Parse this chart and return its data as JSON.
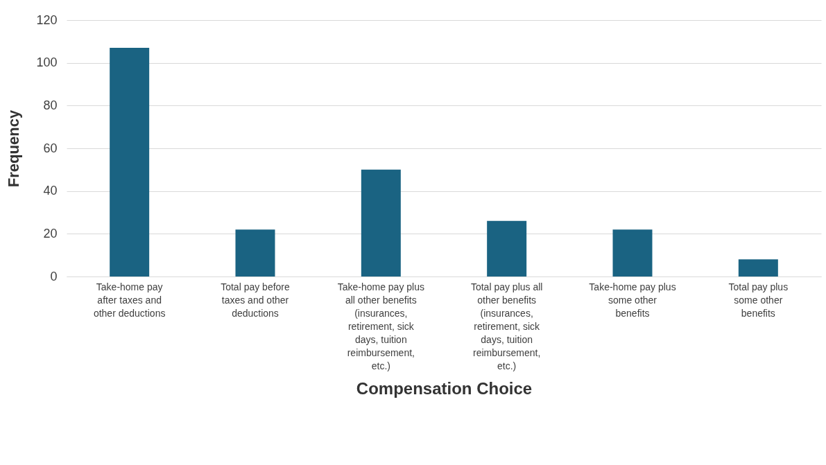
{
  "chart_data": {
    "type": "bar",
    "xlabel": "Compensation Choice",
    "ylabel": "Frequency",
    "categories": [
      "Take-home pay after taxes and other deductions",
      "Total pay before taxes and other deductions",
      "Take-home pay plus all other benefits (insurances, retirement, sick days, tuition reimbursement, etc.)",
      "Total pay plus all other benefits (insurances, retirement, sick days, tuition reimbursement, etc.)",
      "Take-home pay plus some other benefits",
      "Total pay plus some other benefits"
    ],
    "values": [
      107,
      22,
      50,
      26,
      22,
      8
    ],
    "color": "#1a6382",
    "ylim": [
      0,
      120
    ],
    "yticks": [
      0,
      20,
      40,
      60,
      80,
      100,
      120
    ],
    "grid": "y"
  }
}
